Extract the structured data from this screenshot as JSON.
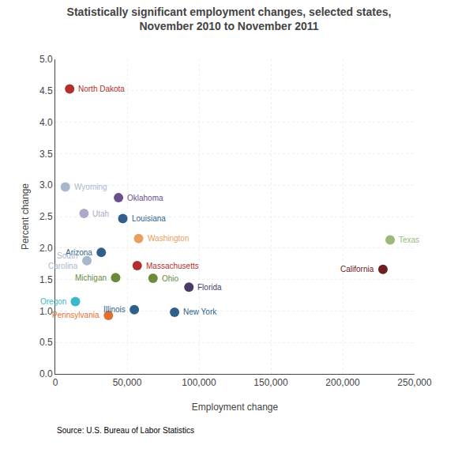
{
  "chart_data": {
    "type": "scatter",
    "title": "Statistically significant employment changes, selected states,\nNovember 2010 to November 2011",
    "xlabel": "Employment change",
    "ylabel": "Percent change",
    "source": "Source: U.S. Bureau of Labor Statistics",
    "labels": [
      "North Dakota",
      "Wyoming",
      "Oklahoma",
      "Utah",
      "Louisiana",
      "Washington",
      "Texas",
      "Arizona",
      "South\nCarolina",
      "Massachusetts",
      "California",
      "Michigan",
      "Ohio",
      "Florida",
      "Illinois",
      "Oregon",
      "Pennsylvania",
      "New York"
    ],
    "x": [
      10000,
      7000,
      44000,
      20000,
      47000,
      58000,
      233000,
      32000,
      22000,
      57000,
      228000,
      42000,
      68000,
      93000,
      55000,
      14000,
      37000,
      83000
    ],
    "values": [
      4.53,
      2.97,
      2.8,
      2.55,
      2.47,
      2.15,
      2.13,
      1.93,
      1.8,
      1.72,
      1.66,
      1.53,
      1.52,
      1.38,
      1.02,
      1.15,
      0.93,
      0.98
    ],
    "colors": [
      "#b03030",
      "#a8b8cc",
      "#6b4f8a",
      "#b0a8c8",
      "#2f5f8a",
      "#e8a060",
      "#9ab87a",
      "#2f5f8a",
      "#a8b8cc",
      "#b03030",
      "#6b2020",
      "#6b8a3a",
      "#6b8a3a",
      "#4a3a6a",
      "#2f5f8a",
      "#3ab8c8",
      "#e07030",
      "#2f5f8a"
    ],
    "xlim": [
      0,
      250000
    ],
    "ylim": [
      0,
      5
    ],
    "xticks": [
      0,
      {
        "value": 50000,
        "label": "50,000"
      },
      {
        "value": 100000,
        "label": "100,000"
      },
      {
        "value": 150000,
        "label": "150,000"
      },
      {
        "value": 200000,
        "label": "200,000"
      },
      {
        "value": 250000,
        "label": "250,000"
      }
    ],
    "yticks": [
      {
        "value": 0,
        "label": "0.0"
      },
      0.5,
      {
        "value": 1,
        "label": "1.0"
      },
      1.5,
      {
        "value": 2,
        "label": "2.0"
      },
      2.5,
      {
        "value": 3,
        "label": "3.0"
      },
      3.5,
      {
        "value": 4,
        "label": "4.0"
      },
      4.5,
      {
        "value": 5,
        "label": "5.0"
      }
    ],
    "grid": true
  }
}
